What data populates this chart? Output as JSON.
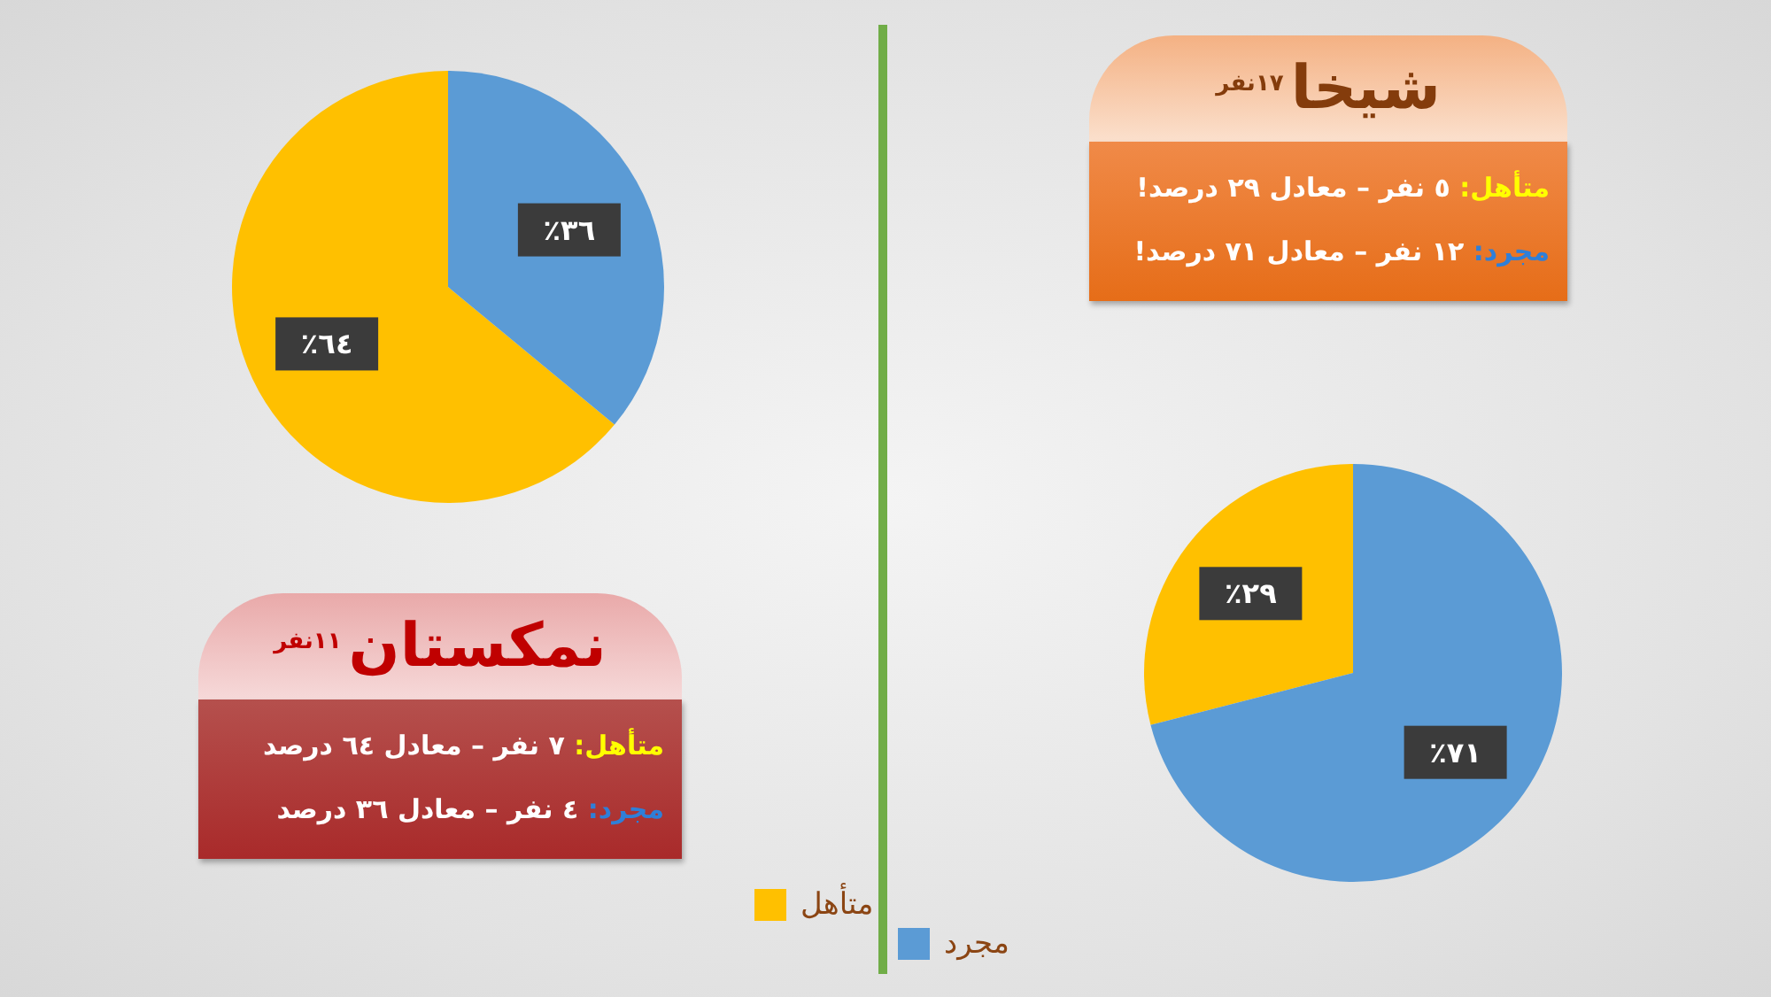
{
  "chart_data": [
    {
      "type": "pie",
      "title": "نمکستان",
      "subtitle": "١١نفر",
      "categories": [
        "متأهل",
        "مجرد"
      ],
      "values": [
        64,
        36
      ],
      "colors": [
        "#ffc000",
        "#5b9bd5"
      ],
      "value_labels": [
        "٪٦٤",
        "٪٣٦"
      ],
      "annotations": [
        "متأهل: ٧ نفر – معادل ٦٤ درصد",
        "مجرد: ٤ نفر – معادل ٣٦ درصد"
      ],
      "legend": "bottom right"
    },
    {
      "type": "pie",
      "title": "شیخا",
      "subtitle": "١٧نفر",
      "categories": [
        null,
        null
      ],
      "values": [
        29,
        71
      ],
      "colors": [
        "#ffc000",
        "#5b9bd5"
      ],
      "value_labels": [
        "٪٢٩",
        "٪٧١"
      ],
      "annotations": [
        "متأهل: ٥ نفر – معادل ٢٩ درصد!",
        "مجرد: ١٢ نفر – معادل ٧١ درصد!"
      ]
    }
  ]
}
